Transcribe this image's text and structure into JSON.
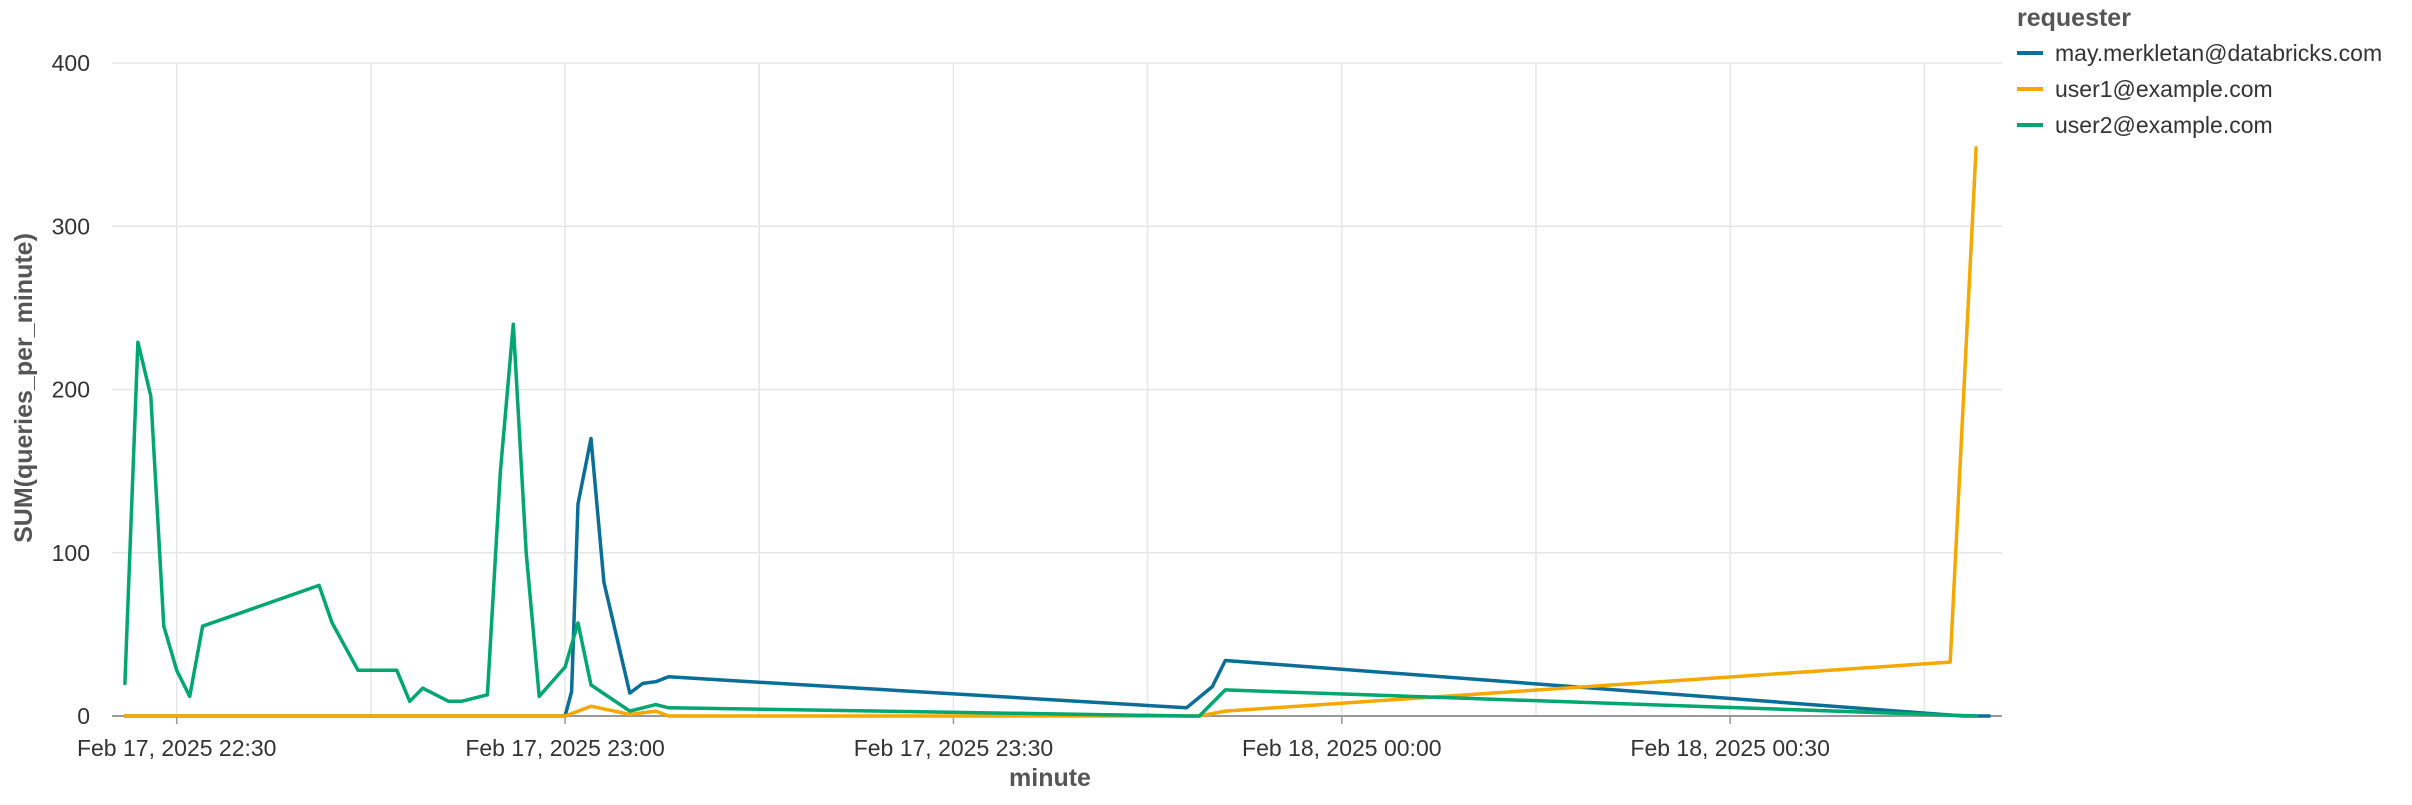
{
  "chart_data": {
    "type": "line",
    "title": "",
    "xlabel": "minute",
    "ylabel": "SUM(queries_per_minute)",
    "x_scale": "time",
    "xlim": [
      "2025-02-17 22:25",
      "2025-02-18 00:51"
    ],
    "ylim": [
      0,
      400
    ],
    "x_ticks": [
      {
        "time": "2025-02-17 22:30",
        "label": "Feb 17, 2025 22:30"
      },
      {
        "time": "2025-02-17 23:00",
        "label": "Feb 17, 2025 23:00"
      },
      {
        "time": "2025-02-17 23:30",
        "label": "Feb 17, 2025 23:30"
      },
      {
        "time": "2025-02-18 00:00",
        "label": "Feb 18, 2025 00:00"
      },
      {
        "time": "2025-02-18 00:30",
        "label": "Feb 18, 2025 00:30"
      }
    ],
    "x_minor_gridlines": [
      "2025-02-17 22:45",
      "2025-02-17 23:15",
      "2025-02-17 23:45",
      "2025-02-18 00:15",
      "2025-02-18 00:45"
    ],
    "y_ticks": [
      0,
      100,
      200,
      300,
      400
    ],
    "grid": true,
    "legend": {
      "title": "requester",
      "position": "top-right"
    },
    "series": [
      {
        "name": "may.merkletan@databricks.com",
        "color": "#0a6e99",
        "points": [
          [
            "2025-02-17 22:26",
            0
          ],
          [
            "2025-02-17 23:00",
            0
          ],
          [
            "2025-02-17 23:00:30",
            15
          ],
          [
            "2025-02-17 23:01",
            130
          ],
          [
            "2025-02-17 23:02",
            170
          ],
          [
            "2025-02-17 23:03",
            82
          ],
          [
            "2025-02-17 23:05",
            14
          ],
          [
            "2025-02-17 23:06",
            20
          ],
          [
            "2025-02-17 23:07",
            21
          ],
          [
            "2025-02-17 23:08",
            24
          ],
          [
            "2025-02-17 23:48",
            5
          ],
          [
            "2025-02-17 23:50",
            18
          ],
          [
            "2025-02-17 23:51",
            34
          ],
          [
            "2025-02-18 00:48",
            0
          ],
          [
            "2025-02-18 00:49",
            0
          ],
          [
            "2025-02-18 00:50",
            0
          ]
        ]
      },
      {
        "name": "user1@example.com",
        "color": "#f5a800",
        "points": [
          [
            "2025-02-17 22:26",
            0
          ],
          [
            "2025-02-17 23:00",
            0
          ],
          [
            "2025-02-17 23:02",
            6
          ],
          [
            "2025-02-17 23:05",
            1
          ],
          [
            "2025-02-17 23:07",
            3
          ],
          [
            "2025-02-17 23:08",
            0
          ],
          [
            "2025-02-17 23:49",
            0
          ],
          [
            "2025-02-17 23:51",
            3
          ],
          [
            "2025-02-18 00:47",
            33
          ],
          [
            "2025-02-18 00:49",
            348
          ]
        ]
      },
      {
        "name": "user2@example.com",
        "color": "#00a76f",
        "points": [
          [
            "2025-02-17 22:26",
            20
          ],
          [
            "2025-02-17 22:27",
            229
          ],
          [
            "2025-02-17 22:28",
            196
          ],
          [
            "2025-02-17 22:29",
            55
          ],
          [
            "2025-02-17 22:30",
            28
          ],
          [
            "2025-02-17 22:31",
            12
          ],
          [
            "2025-02-17 22:32",
            55
          ],
          [
            "2025-02-17 22:41",
            80
          ],
          [
            "2025-02-17 22:42",
            57
          ],
          [
            "2025-02-17 22:44",
            28
          ],
          [
            "2025-02-17 22:47",
            28
          ],
          [
            "2025-02-17 22:48",
            9
          ],
          [
            "2025-02-17 22:49",
            17
          ],
          [
            "2025-02-17 22:51",
            9
          ],
          [
            "2025-02-17 22:52",
            9
          ],
          [
            "2025-02-17 22:54",
            13
          ],
          [
            "2025-02-17 22:55",
            150
          ],
          [
            "2025-02-17 22:56",
            240
          ],
          [
            "2025-02-17 22:57",
            100
          ],
          [
            "2025-02-17 22:58",
            12
          ],
          [
            "2025-02-17 23:00",
            30
          ],
          [
            "2025-02-17 23:01",
            57
          ],
          [
            "2025-02-17 23:02",
            19
          ],
          [
            "2025-02-17 23:05",
            3
          ],
          [
            "2025-02-17 23:07",
            7
          ],
          [
            "2025-02-17 23:08",
            5
          ],
          [
            "2025-02-17 23:48",
            0
          ],
          [
            "2025-02-17 23:49",
            0
          ],
          [
            "2025-02-17 23:51",
            16
          ],
          [
            "2025-02-18 00:49",
            0
          ]
        ]
      }
    ]
  }
}
